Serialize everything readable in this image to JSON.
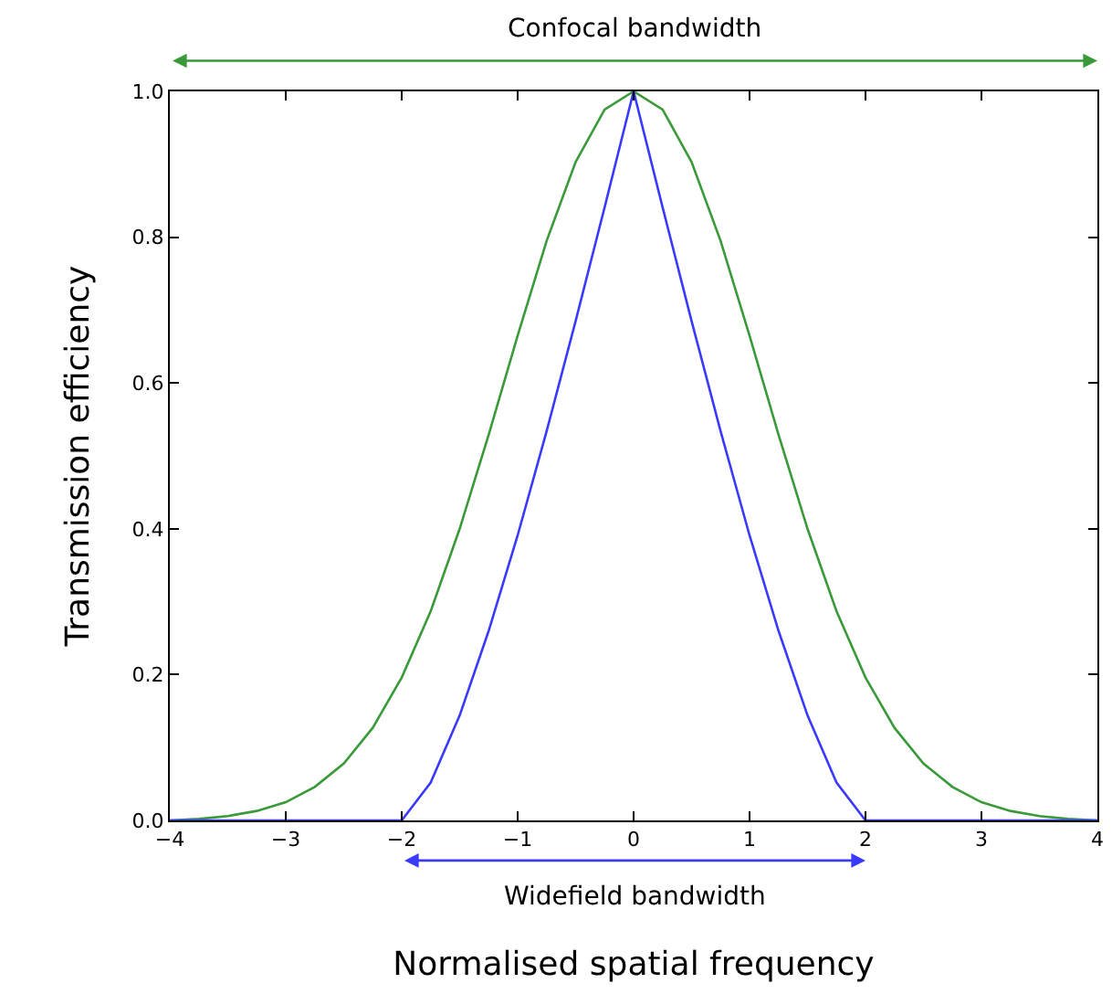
{
  "chart_data": {
    "type": "line",
    "xlabel": "Normalised spatial frequency",
    "ylabel": "Transmission efficiency",
    "x": [
      -4,
      -3.75,
      -3.5,
      -3.25,
      -3,
      -2.75,
      -2.5,
      -2.25,
      -2,
      -1.75,
      -1.5,
      -1.25,
      -1,
      -0.75,
      -0.5,
      -0.25,
      0,
      0.25,
      0.5,
      0.75,
      1,
      1.25,
      1.5,
      1.75,
      2,
      2.25,
      2.5,
      2.75,
      3,
      3.25,
      3.5,
      3.75,
      4
    ],
    "series": [
      {
        "color": "#3a9a3a",
        "values": [
          0,
          0.002,
          0.006,
          0.013,
          0.025,
          0.046,
          0.078,
          0.127,
          0.196,
          0.287,
          0.4,
          0.529,
          0.665,
          0.795,
          0.903,
          0.975,
          1,
          0.975,
          0.903,
          0.795,
          0.665,
          0.529,
          0.4,
          0.287,
          0.196,
          0.127,
          0.078,
          0.046,
          0.025,
          0.013,
          0.006,
          0.002,
          0
        ]
      },
      {
        "color": "#3a3aff",
        "values": [
          0,
          0,
          0,
          0,
          0,
          0,
          0,
          0,
          0,
          0.052,
          0.144,
          0.26,
          0.391,
          0.534,
          0.685,
          0.841,
          1,
          0.841,
          0.685,
          0.534,
          0.391,
          0.26,
          0.144,
          0.052,
          0,
          0,
          0,
          0,
          0,
          0,
          0,
          0,
          0
        ]
      }
    ],
    "annotations": [
      "Confocal bandwidth",
      "Widefield bandwidth"
    ],
    "xlim": [
      -4,
      4
    ],
    "ylim": [
      0,
      1
    ],
    "xticks": [
      {
        "value": -4,
        "label": "−4"
      },
      {
        "value": -3,
        "label": "−3"
      },
      {
        "value": -2,
        "label": "−2"
      },
      {
        "value": -1,
        "label": "−1"
      },
      0,
      1,
      2,
      3,
      4
    ],
    "yticks": [
      {
        "value": 0,
        "label": "0.0"
      },
      {
        "value": 0.2,
        "label": "0.2"
      },
      {
        "value": 0.4,
        "label": "0.4"
      },
      {
        "value": 0.6,
        "label": "0.6"
      },
      {
        "value": 0.8,
        "label": "0.8"
      },
      {
        "value": 1,
        "label": "1.0"
      }
    ],
    "legend": false,
    "marker": "none",
    "line_style": "solid"
  }
}
